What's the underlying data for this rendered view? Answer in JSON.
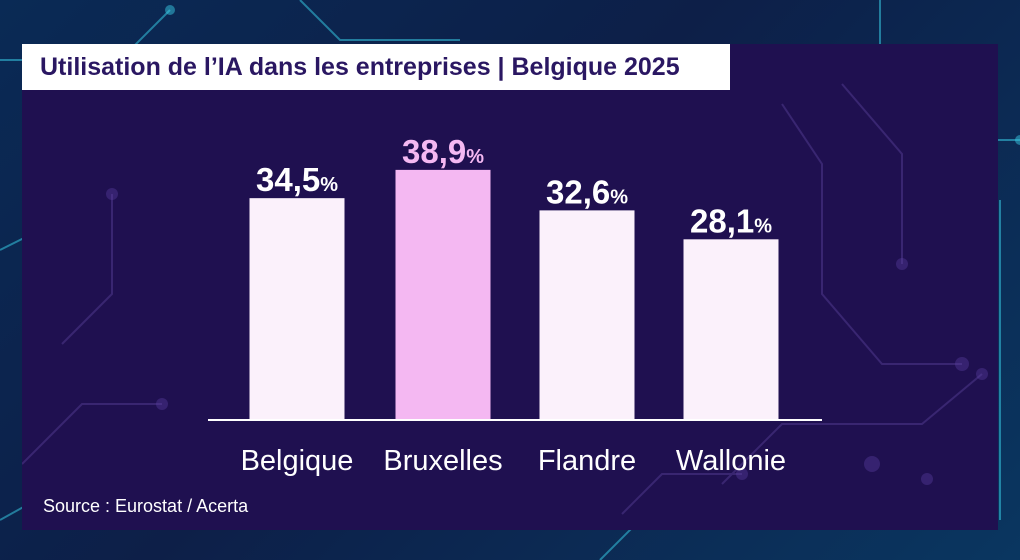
{
  "chart_data": {
    "type": "bar",
    "title": "Utilisation de l’IA dans les entreprises | Belgique 2025",
    "categories": [
      "Belgique",
      "Bruxelles",
      "Flandre",
      "Wallonie"
    ],
    "values": [
      34.5,
      38.9,
      32.6,
      28.1
    ],
    "value_labels": [
      "34,5",
      "38,9",
      "32,6",
      "28,1"
    ],
    "unit": "%",
    "highlighted_category": "Bruxelles",
    "xlabel": "",
    "ylabel": "",
    "ylim": [
      0,
      40
    ],
    "grid": false,
    "legend": "none"
  },
  "source": "Source : Eurostat / Acerta",
  "colors": {
    "panel": "#1f1050",
    "bar_default": "#fbf1fb",
    "bar_highlight": "#f4b8f2",
    "label_default": "#ffffff",
    "label_highlight": "#f4b8f2",
    "baseline": "#ffffff",
    "title_text": "#2a1762",
    "title_bg": "#ffffff"
  }
}
